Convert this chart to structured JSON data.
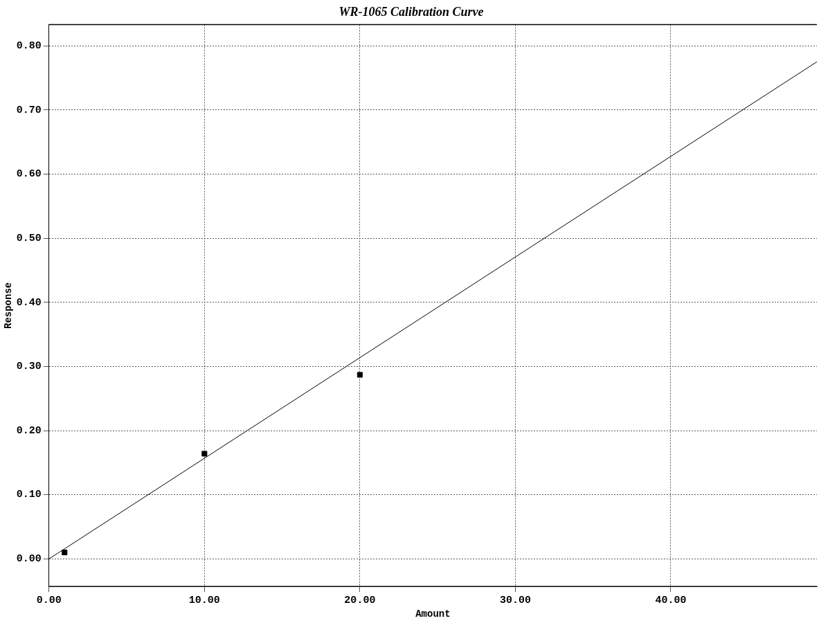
{
  "chart_data": {
    "type": "scatter",
    "title": "WR-1065 Calibration Curve",
    "xlabel": "Amount",
    "ylabel": "Response",
    "series": [
      {
        "type": "scatter",
        "color": "#000000",
        "x": [
          1,
          10,
          20
        ],
        "values": [
          0.01,
          0.164,
          0.287
        ],
        "marker": "square"
      },
      {
        "type": "line",
        "color": "#000000",
        "x": [
          0,
          49.4
        ],
        "values": [
          0,
          0.775
        ],
        "marker": "none",
        "line_style": "solid"
      }
    ],
    "xlim": [
      0,
      49.4
    ],
    "xticks": [
      {
        "value": 0,
        "label": "0.00"
      },
      {
        "value": 10,
        "label": "10.00"
      },
      {
        "value": 20,
        "label": "20.00"
      },
      {
        "value": 30,
        "label": "30.00"
      },
      {
        "value": 40,
        "label": "40.00"
      }
    ],
    "ylim": [
      -0.043,
      0.833
    ],
    "yticks": [
      {
        "value": 0,
        "label": "0.00"
      },
      {
        "value": 0.1,
        "label": "0.10"
      },
      {
        "value": 0.2,
        "label": "0.20"
      },
      {
        "value": 0.3,
        "label": "0.30"
      },
      {
        "value": 0.4,
        "label": "0.40"
      },
      {
        "value": 0.5,
        "label": "0.50"
      },
      {
        "value": 0.6,
        "label": "0.60"
      },
      {
        "value": 0.7,
        "label": "0.70"
      },
      {
        "value": 0.8,
        "label": "0.80"
      }
    ],
    "grid": true,
    "legend": false
  }
}
